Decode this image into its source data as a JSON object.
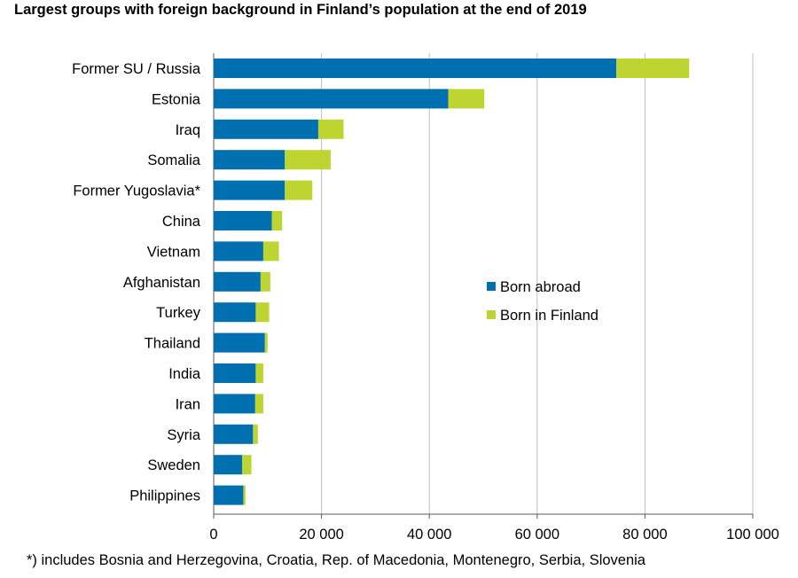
{
  "chart_data": {
    "type": "bar",
    "orientation": "horizontal",
    "stacked": true,
    "title": "Largest groups with foreign background in Finland’s population at the end of 2019",
    "footnote": "*) includes Bosnia and Herzegovina, Croatia, Rep. of Macedonia, Montenegro, Serbia, Slovenia",
    "categories": [
      "Former SU / Russia",
      "Estonia",
      "Iraq",
      "Somalia",
      "Former Yugoslavia*",
      "China",
      "Vietnam",
      "Afghanistan",
      "Turkey",
      "Thailand",
      "India",
      "Iran",
      "Syria",
      "Sweden",
      "Philippines"
    ],
    "series": [
      {
        "name": "Born abroad",
        "color": "#0070B0",
        "values": [
          74700,
          43500,
          19400,
          13200,
          13200,
          10800,
          9200,
          8700,
          7800,
          9500,
          7800,
          7700,
          7300,
          5300,
          5500
        ]
      },
      {
        "name": "Born in Finland",
        "color": "#BED531",
        "values": [
          13500,
          6700,
          4700,
          8500,
          5100,
          1900,
          2900,
          1800,
          2500,
          500,
          1400,
          1500,
          900,
          1700,
          400
        ]
      }
    ],
    "xlim": [
      0,
      100000
    ],
    "xticks": [
      0,
      20000,
      40000,
      60000,
      80000,
      100000
    ],
    "xtick_labels": [
      "0",
      "20 000",
      "40 000",
      "60 000",
      "80 000",
      "100 000"
    ],
    "grid": "vertical",
    "legend_position": "center-right",
    "xlabel": "",
    "ylabel": ""
  }
}
